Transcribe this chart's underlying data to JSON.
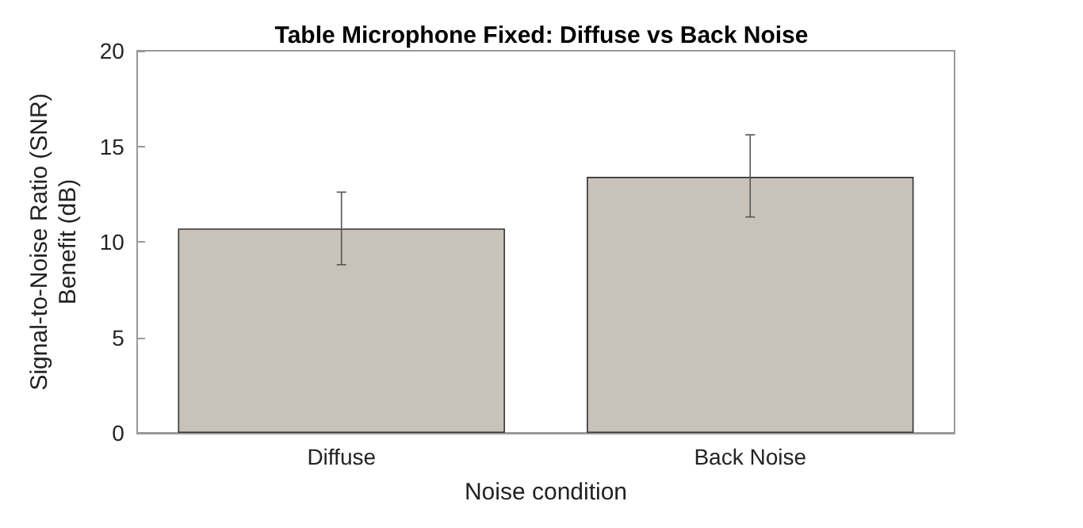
{
  "chart_data": {
    "type": "bar",
    "title": "Table Microphone Fixed: Diffuse vs Back Noise",
    "categories": [
      "Diffuse",
      "Back Noise"
    ],
    "values": [
      10.7,
      13.4
    ],
    "errors": [
      [
        8.8,
        12.6
      ],
      [
        11.3,
        15.6
      ]
    ],
    "color": "#c8c2bb",
    "xlabel": "Noise condition",
    "ylabel": "Signal-to-Noise Ratio (SNR)\nBenefit (dB)",
    "ylim": [
      0,
      20
    ],
    "yticks": [
      0,
      5,
      10,
      15,
      20
    ],
    "grid": false
  }
}
